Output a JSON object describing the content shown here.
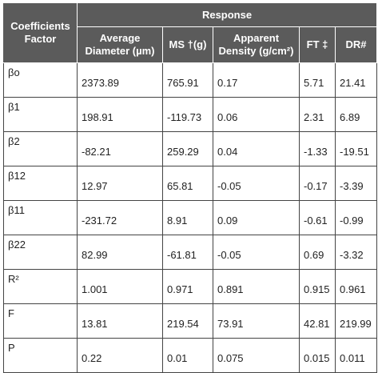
{
  "table": {
    "corner_label_line1": "Coefficients",
    "corner_label_line2": "Factor",
    "group_header": "Response",
    "columns": [
      "Average Diameter (µm)",
      "MS †(g)",
      "Apparent Density (g/cm²)",
      "FT ‡",
      "DR#"
    ],
    "rows": [
      {
        "label": "βo",
        "values": [
          "2373.89",
          "765.91",
          "0.17",
          "5.71",
          "21.41"
        ]
      },
      {
        "label": "β1",
        "values": [
          "198.91",
          "-119.73",
          "0.06",
          "2.31",
          "6.89"
        ]
      },
      {
        "label": "β2",
        "values": [
          "-82.21",
          "259.29",
          "0.04",
          "-1.33",
          "-19.51"
        ]
      },
      {
        "label": "β12",
        "values": [
          "12.97",
          "65.81",
          "-0.05",
          "-0.17",
          "-3.39"
        ]
      },
      {
        "label": "β11",
        "values": [
          "-231.72",
          "8.91",
          "0.09",
          "-0.61",
          "-0.99"
        ]
      },
      {
        "label": "β22",
        "values": [
          "82.99",
          "-61.81",
          "-0.05",
          "0.69",
          "-3.32"
        ]
      },
      {
        "label": "R²",
        "values": [
          "1.001",
          "0.971",
          "0.891",
          "0.915",
          "0.961"
        ]
      },
      {
        "label": "F",
        "values": [
          "13.81",
          "219.54",
          "73.91",
          "42.81",
          "219.99"
        ]
      },
      {
        "label": "P",
        "values": [
          "0.22",
          "0.01",
          "0.075",
          "0.015",
          "0.011"
        ]
      }
    ]
  },
  "colors": {
    "header_background": "#5b5b5b",
    "header_text": "#ffffff",
    "grid_line": "#444444"
  }
}
